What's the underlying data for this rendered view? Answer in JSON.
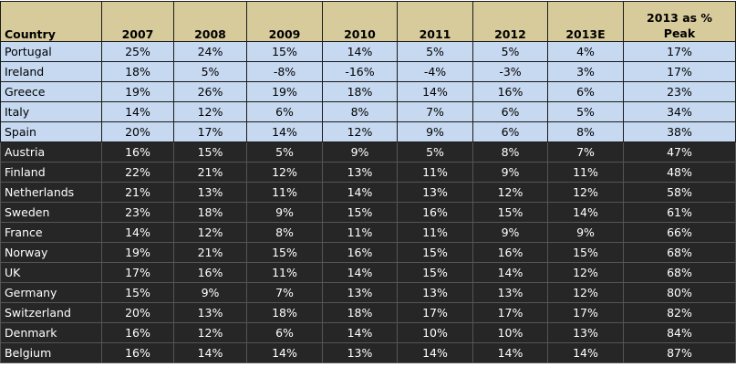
{
  "table": {
    "header": [
      "Country",
      "2007",
      "2008",
      "2009",
      "2010",
      "2011",
      "2012",
      "2013E",
      "2013 as % Peak"
    ],
    "rows": [
      [
        "Portugal",
        "25%",
        "24%",
        "15%",
        "14%",
        "5%",
        "5%",
        "4%",
        "17%"
      ],
      [
        "Ireland",
        "18%",
        "5%",
        "-8%",
        "-16%",
        "-4%",
        "-3%",
        "3%",
        "17%"
      ],
      [
        "Greece",
        "19%",
        "26%",
        "19%",
        "18%",
        "14%",
        "16%",
        "6%",
        "23%"
      ],
      [
        "Italy",
        "14%",
        "12%",
        "6%",
        "8%",
        "7%",
        "6%",
        "5%",
        "34%"
      ],
      [
        "Spain",
        "20%",
        "17%",
        "14%",
        "12%",
        "9%",
        "6%",
        "8%",
        "38%"
      ],
      [
        "Austria",
        "16%",
        "15%",
        "5%",
        "9%",
        "5%",
        "8%",
        "7%",
        "47%"
      ],
      [
        "Finland",
        "22%",
        "21%",
        "12%",
        "13%",
        "11%",
        "9%",
        "11%",
        "48%"
      ],
      [
        "Netherlands",
        "21%",
        "13%",
        "11%",
        "14%",
        "13%",
        "12%",
        "12%",
        "58%"
      ],
      [
        "Sweden",
        "23%",
        "18%",
        "9%",
        "15%",
        "16%",
        "15%",
        "14%",
        "61%"
      ],
      [
        "France",
        "14%",
        "12%",
        "8%",
        "11%",
        "11%",
        "9%",
        "9%",
        "66%"
      ],
      [
        "Norway",
        "19%",
        "21%",
        "15%",
        "16%",
        "15%",
        "16%",
        "15%",
        "68%"
      ],
      [
        "UK",
        "17%",
        "16%",
        "11%",
        "14%",
        "15%",
        "14%",
        "12%",
        "68%"
      ],
      [
        "Germany",
        "15%",
        "9%",
        "7%",
        "13%",
        "13%",
        "13%",
        "12%",
        "80%"
      ],
      [
        "Switzerland",
        "20%",
        "13%",
        "18%",
        "18%",
        "17%",
        "17%",
        "17%",
        "82%"
      ],
      [
        "Denmark",
        "16%",
        "12%",
        "6%",
        "14%",
        "10%",
        "10%",
        "13%",
        "84%"
      ],
      [
        "Belgium",
        "16%",
        "14%",
        "14%",
        "13%",
        "14%",
        "14%",
        "14%",
        "87%"
      ]
    ]
  }
}
